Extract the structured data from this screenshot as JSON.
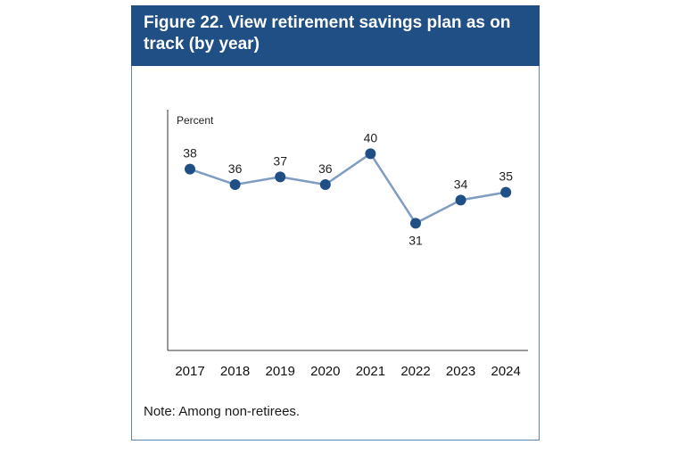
{
  "figure": {
    "title": "Figure 22. View retirement savings plan as on track (by year)",
    "note": "Note: Among non-retirees."
  },
  "colors": {
    "header_bg": "#1f4f85",
    "line": "#7f9cc3",
    "marker": "#1f4f85",
    "border": "#5b86b3"
  },
  "chart_data": {
    "type": "line",
    "categories": [
      "2017",
      "2018",
      "2019",
      "2020",
      "2021",
      "2022",
      "2023",
      "2024"
    ],
    "values": [
      38,
      36,
      37,
      36,
      40,
      31,
      34,
      35
    ],
    "data_labels": [
      "38",
      "36",
      "37",
      "36",
      "40",
      "31",
      "34",
      "35"
    ],
    "ylabel": "Percent",
    "xlabel": "",
    "ylim": [
      15,
      45
    ],
    "grid": false,
    "legend": "none"
  }
}
